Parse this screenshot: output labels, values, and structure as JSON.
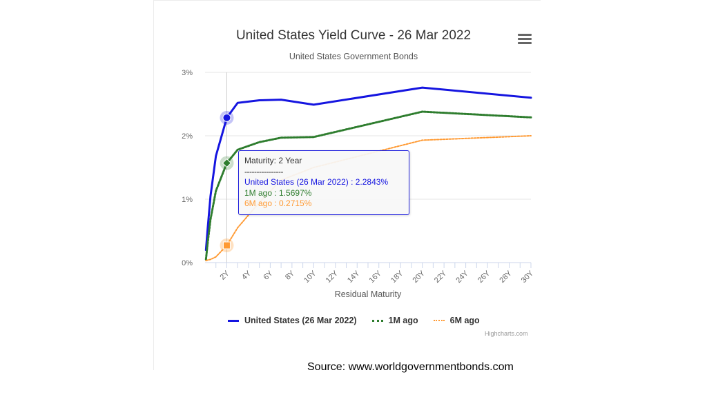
{
  "chart_data": {
    "type": "line",
    "title": "United States Yield Curve - 26 Mar 2022",
    "subtitle": "United States Government Bonds",
    "xlabel": "Residual Maturity",
    "ylabel": "",
    "x_unit_years": true,
    "xlim": [
      0,
      30
    ],
    "ylim": [
      0,
      3
    ],
    "x_ticks": [
      2,
      4,
      6,
      8,
      10,
      12,
      14,
      16,
      18,
      20,
      22,
      24,
      26,
      28,
      30
    ],
    "x_tick_labels": [
      "2Y",
      "4Y",
      "6Y",
      "8Y",
      "10Y",
      "12Y",
      "14Y",
      "16Y",
      "18Y",
      "20Y",
      "22Y",
      "24Y",
      "26Y",
      "28Y",
      "30Y"
    ],
    "y_ticks": [
      0,
      1,
      2,
      3
    ],
    "y_tick_labels": [
      "0%",
      "1%",
      "2%",
      "3%"
    ],
    "grid": "horizontal",
    "legend_position": "bottom",
    "series": [
      {
        "name": "United States (26 Mar 2022)",
        "color": "#1515e0",
        "style": "solid",
        "x": [
          0.083,
          0.25,
          0.5,
          1,
          2,
          3,
          5,
          7,
          10,
          20,
          30
        ],
        "values": [
          0.2,
          0.55,
          1.05,
          1.68,
          2.2843,
          2.52,
          2.56,
          2.57,
          2.49,
          2.76,
          2.6
        ]
      },
      {
        "name": "1M ago",
        "color": "#2e7d2e",
        "style": "dotted",
        "x": [
          0.083,
          0.25,
          0.5,
          1,
          2,
          3,
          5,
          7,
          10,
          20,
          30
        ],
        "values": [
          0.05,
          0.32,
          0.68,
          1.13,
          1.5697,
          1.78,
          1.9,
          1.97,
          1.98,
          2.38,
          2.29
        ]
      },
      {
        "name": "6M ago",
        "color": "#ff9a33",
        "style": "dotted",
        "x": [
          0.083,
          0.25,
          0.5,
          1,
          2,
          3,
          5,
          7,
          10,
          20,
          30
        ],
        "values": [
          0.03,
          0.04,
          0.05,
          0.09,
          0.2715,
          0.55,
          0.95,
          1.3,
          1.5,
          1.93,
          2.0
        ]
      }
    ],
    "highlight_x": 2,
    "tooltip": {
      "title": "Maturity: 2 Year",
      "separator": "----------------",
      "lines": [
        "United States (26 Mar 2022) : 2.2843%",
        "1M ago : 1.5697%",
        "6M ago : 0.2715%"
      ]
    }
  },
  "legend": {
    "items": [
      "United States (26 Mar 2022)",
      "1M ago",
      "6M ago"
    ]
  },
  "credits": "Highcharts.com",
  "source_text": "Source: www.worldgovernmentbonds.com",
  "menu_icon": "hamburger-menu-icon"
}
